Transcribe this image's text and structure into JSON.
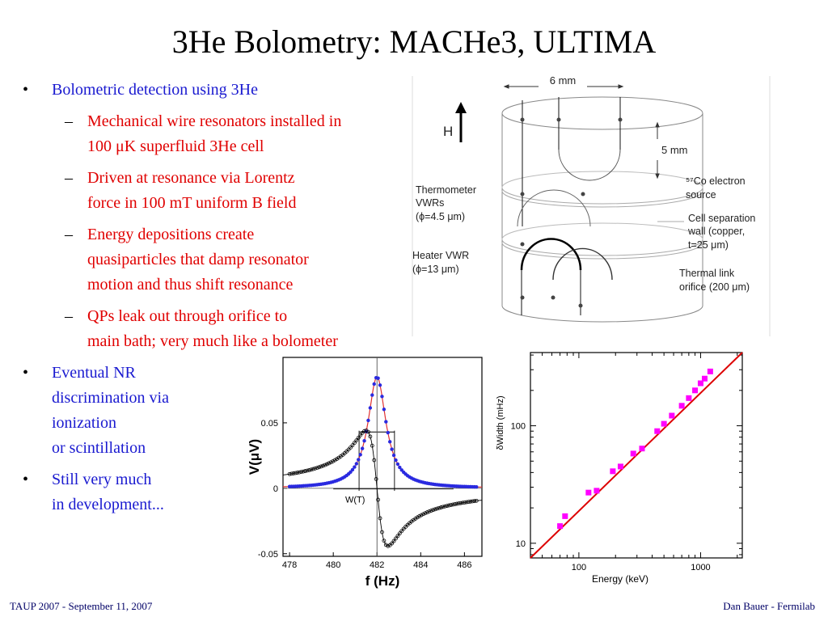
{
  "title": "3He Bolometry: MACHe3, ULTIMA",
  "bullets": {
    "b1": "Bolometric detection using 3He",
    "s1a": "Mechanical wire resonators installed in",
    "s1b": "100 μK superfluid 3He cell",
    "s2a": "Driven at resonance via Lorentz",
    "s2b": "force in 100 mT uniform B field",
    "s3a": "Energy depositions create",
    "s3b": "quasiparticles that damp resonator",
    "s3c": "motion and thus shift resonance",
    "s4a": "QPs leak out through orifice to",
    "s4b": "main bath; very much like a bolometer",
    "b2a": "Eventual NR",
    "b2b": "discrimination via",
    "b2c": "ionization",
    "b2d": "or scintillation",
    "b3a": "Still very much",
    "b3b": "in development..."
  },
  "bullet_symbol": "•",
  "dash_symbol": "–",
  "diagram": {
    "width_label": "6 mm",
    "height_label": "5 mm",
    "field_label": "H",
    "thermometer_l1": "Thermometer",
    "thermometer_l2": "VWRs",
    "thermometer_l3": "(ϕ=4.5  μm)",
    "heater_l1": "Heater VWR",
    "heater_l2": "(ϕ=13  μm)",
    "source_l1": "⁵⁷Co electron",
    "source_l2": "source",
    "wall_l1": "Cell separation",
    "wall_l2": "wall (copper,",
    "wall_l3": "t=25  μm)",
    "orifice_l1": "Thermal link",
    "orifice_l2": "orifice (200  μm)"
  },
  "colors": {
    "title": "#000000",
    "level1": "#1a1ad0",
    "level2": "#e00000",
    "footer": "#000066",
    "series_in_phase": "#2a2ae0",
    "series_quadrature": "#000000",
    "fit_line": "#e03030",
    "energy_points": "#ff00ff",
    "energy_fit": "#dd0000"
  },
  "chart_data": [
    {
      "type": "line",
      "xlabel": "f (Hz)",
      "ylabel": "V(μV)",
      "xlim": [
        477.7,
        486.8
      ],
      "ylim": [
        -0.052,
        0.1
      ],
      "xticks": [
        "478",
        "480",
        "482",
        "484",
        "486"
      ],
      "yticks": [
        "0.05",
        "0",
        "-0.05"
      ],
      "annotation": "W(T)",
      "resonance": {
        "f0": 482.0,
        "half_width": 0.5
      },
      "series": [
        {
          "role": "in-phase (absorption)",
          "x": [
            478.0,
            479.0,
            480.0,
            480.5,
            481.0,
            481.5,
            481.8,
            482.0,
            482.2,
            482.5,
            483.0,
            483.5,
            484.0,
            485.0,
            486.0,
            486.6
          ],
          "y": [
            0.0059,
            0.0085,
            0.0147,
            0.0212,
            0.0425,
            0.0425,
            0.0737,
            0.085,
            0.0737,
            0.0425,
            0.0212,
            0.0127,
            0.0085,
            0.0048,
            0.0031,
            0.0024
          ]
        },
        {
          "role": "quadrature (dispersion)",
          "x": [
            478.0,
            479.0,
            480.0,
            480.5,
            481.0,
            481.3,
            481.5,
            481.8,
            482.0,
            482.2,
            482.5,
            482.7,
            483.0,
            483.5,
            484.0,
            485.0,
            486.0,
            486.6
          ],
          "y": [
            0.0166,
            0.0207,
            0.0276,
            0.0331,
            0.0414,
            0.0441,
            0.0414,
            0.0265,
            0.0,
            -0.0265,
            -0.0414,
            -0.0441,
            -0.0414,
            -0.0331,
            -0.0276,
            -0.0207,
            -0.0166,
            -0.0149
          ]
        }
      ]
    },
    {
      "type": "scatter",
      "xlabel": "Energy (keV)",
      "ylabel": "δWidth (mHz)",
      "xscale": "log",
      "yscale": "log",
      "xlim": [
        40,
        2200
      ],
      "ylim": [
        7.5,
        420
      ],
      "xticks": [
        "100",
        "1000"
      ],
      "yticks": [
        "10",
        "100"
      ],
      "fit": {
        "x": [
          40,
          2200
        ],
        "y": [
          7.5,
          480
        ]
      },
      "x": [
        70,
        77,
        120,
        140,
        190,
        220,
        280,
        330,
        440,
        500,
        580,
        700,
        800,
        900,
        1000,
        1080,
        1200
      ],
      "y": [
        14,
        17,
        27,
        28,
        41,
        45,
        58,
        64,
        90,
        104,
        122,
        148,
        172,
        200,
        230,
        252,
        290
      ]
    }
  ],
  "footer": {
    "left": "TAUP 2007 - September 11, 2007",
    "right": "Dan Bauer - Fermilab"
  }
}
